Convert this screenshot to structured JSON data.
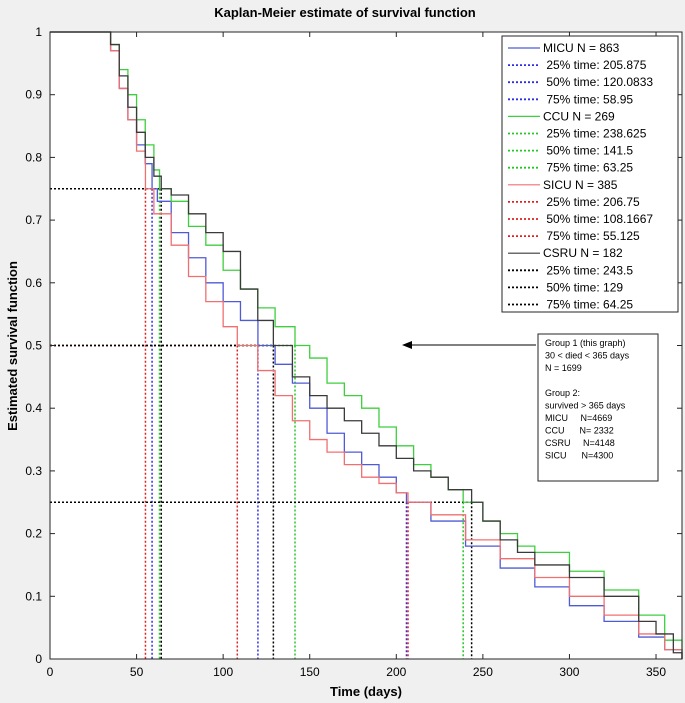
{
  "chart_data": {
    "type": "line",
    "title": "Kaplan-Meier estimate of survival function",
    "xlabel": "Time (days)",
    "ylabel": "Estimated survival function",
    "xlim": [
      0,
      365
    ],
    "ylim": [
      0,
      1
    ],
    "xticks": [
      "0",
      "50",
      "100",
      "150",
      "200",
      "250",
      "300",
      "350"
    ],
    "xtick_values": [
      0,
      50,
      100,
      150,
      200,
      250,
      300,
      350
    ],
    "yticks": [
      "0",
      "0.1",
      "0.2",
      "0.3",
      "0.4",
      "0.5",
      "0.6",
      "0.7",
      "0.8",
      "0.9",
      "1"
    ],
    "ytick_values": [
      0,
      0.1,
      0.2,
      0.3,
      0.4,
      0.5,
      0.6,
      0.7,
      0.8,
      0.9,
      1
    ],
    "series": [
      {
        "name": "MICU N = 863",
        "color": "#4f5bd5",
        "x": [
          0,
          30,
          35,
          40,
          45,
          50,
          55,
          58.95,
          62,
          70,
          80,
          90,
          100,
          110,
          120.0833,
          130,
          140,
          150,
          160,
          170,
          180,
          190,
          200,
          205.875,
          220,
          240,
          260,
          280,
          300,
          320,
          340,
          355,
          365
        ],
        "y": [
          1,
          1,
          0.97,
          0.91,
          0.86,
          0.82,
          0.79,
          0.75,
          0.73,
          0.68,
          0.64,
          0.6,
          0.57,
          0.54,
          0.5,
          0.47,
          0.44,
          0.4,
          0.36,
          0.33,
          0.31,
          0.29,
          0.265,
          0.25,
          0.22,
          0.18,
          0.145,
          0.115,
          0.085,
          0.06,
          0.035,
          0.015,
          0
        ]
      },
      {
        "name": "CCU N = 269",
        "color": "#3ecf3e",
        "x": [
          0,
          30,
          35,
          40,
          45,
          50,
          55,
          60,
          63.25,
          70,
          80,
          90,
          100,
          110,
          120,
          130,
          141.5,
          150,
          160,
          170,
          180,
          190,
          200,
          210,
          220,
          230,
          238.625,
          250,
          260,
          270,
          280,
          300,
          320,
          340,
          355,
          365
        ],
        "y": [
          1,
          1,
          0.98,
          0.94,
          0.9,
          0.86,
          0.82,
          0.78,
          0.75,
          0.73,
          0.69,
          0.66,
          0.62,
          0.59,
          0.56,
          0.53,
          0.5,
          0.48,
          0.44,
          0.42,
          0.4,
          0.37,
          0.34,
          0.31,
          0.29,
          0.27,
          0.25,
          0.22,
          0.2,
          0.18,
          0.17,
          0.14,
          0.11,
          0.07,
          0.03,
          0
        ]
      },
      {
        "name": "SICU N = 385",
        "color": "#f07070",
        "x": [
          0,
          30,
          35,
          40,
          45,
          50,
          55.125,
          60,
          70,
          80,
          90,
          100,
          108.1667,
          120,
          130,
          140,
          150,
          160,
          170,
          180,
          190,
          200,
          206.75,
          220,
          240,
          260,
          280,
          300,
          320,
          340,
          355,
          365
        ],
        "y": [
          1,
          1,
          0.97,
          0.91,
          0.86,
          0.81,
          0.75,
          0.71,
          0.66,
          0.61,
          0.57,
          0.53,
          0.5,
          0.46,
          0.42,
          0.38,
          0.35,
          0.33,
          0.31,
          0.29,
          0.28,
          0.265,
          0.25,
          0.23,
          0.19,
          0.16,
          0.13,
          0.1,
          0.07,
          0.04,
          0.015,
          0
        ]
      },
      {
        "name": "CSRU N = 182",
        "color": "#3a3a3a",
        "x": [
          0,
          30,
          35,
          40,
          45,
          50,
          55,
          60,
          64.25,
          70,
          80,
          90,
          100,
          110,
          120,
          129,
          140,
          150,
          160,
          170,
          180,
          190,
          200,
          210,
          220,
          230,
          243.5,
          250,
          260,
          270,
          280,
          300,
          320,
          340,
          350,
          360,
          365
        ],
        "y": [
          1,
          1,
          0.98,
          0.93,
          0.88,
          0.84,
          0.8,
          0.77,
          0.75,
          0.74,
          0.71,
          0.68,
          0.65,
          0.59,
          0.54,
          0.5,
          0.45,
          0.42,
          0.4,
          0.38,
          0.36,
          0.34,
          0.32,
          0.3,
          0.29,
          0.27,
          0.25,
          0.22,
          0.19,
          0.17,
          0.15,
          0.13,
          0.1,
          0.06,
          0.04,
          0.01,
          0
        ]
      }
    ],
    "quantile_markers": [
      {
        "series": "MICU",
        "color": "#2e2ee8",
        "values": [
          {
            "level": 0.25,
            "t": 205.875
          },
          {
            "level": 0.5,
            "t": 120.0833
          },
          {
            "level": 0.75,
            "t": 58.95
          }
        ]
      },
      {
        "series": "CCU",
        "color": "#22c822",
        "values": [
          {
            "level": 0.25,
            "t": 238.625
          },
          {
            "level": 0.5,
            "t": 141.5
          },
          {
            "level": 0.75,
            "t": 63.25
          }
        ]
      },
      {
        "series": "SICU",
        "color": "#e02020",
        "values": [
          {
            "level": 0.25,
            "t": 206.75
          },
          {
            "level": 0.5,
            "t": 108.1667
          },
          {
            "level": 0.75,
            "t": 55.125
          }
        ]
      },
      {
        "series": "CSRU",
        "color": "#000000",
        "values": [
          {
            "level": 0.25,
            "t": 243.5
          },
          {
            "level": 0.5,
            "t": 129
          },
          {
            "level": 0.75,
            "t": 64.25
          }
        ]
      }
    ],
    "legend": {
      "placement": "top-right",
      "entries": [
        {
          "label": "MICU N = 863",
          "color": "#4f5bd5",
          "style": "solid"
        },
        {
          "label": " 25% time: 205.875",
          "color": "#2e2ee8",
          "style": "dotted"
        },
        {
          "label": " 50% time: 120.0833",
          "color": "#2e2ee8",
          "style": "dotted"
        },
        {
          "label": " 75% time: 58.95",
          "color": "#2e2ee8",
          "style": "dotted"
        },
        {
          "label": "CCU N = 269",
          "color": "#3ecf3e",
          "style": "solid"
        },
        {
          "label": " 25% time: 238.625",
          "color": "#22c822",
          "style": "dotted"
        },
        {
          "label": " 50% time: 141.5",
          "color": "#22c822",
          "style": "dotted"
        },
        {
          "label": " 75% time: 63.25",
          "color": "#22c822",
          "style": "dotted"
        },
        {
          "label": "SICU N = 385",
          "color": "#f07070",
          "style": "solid"
        },
        {
          "label": " 25% time: 206.75",
          "color": "#e02020",
          "style": "dotted"
        },
        {
          "label": " 50% time: 108.1667",
          "color": "#e02020",
          "style": "dotted"
        },
        {
          "label": " 75% time: 55.125",
          "color": "#e02020",
          "style": "dotted"
        },
        {
          "label": "CSRU N = 182",
          "color": "#3a3a3a",
          "style": "solid"
        },
        {
          "label": " 25% time: 243.5",
          "color": "#000000",
          "style": "dotted"
        },
        {
          "label": " 50% time: 129",
          "color": "#000000",
          "style": "dotted"
        },
        {
          "label": " 75% time: 64.25",
          "color": "#000000",
          "style": "dotted"
        }
      ]
    },
    "annotation": {
      "lines": [
        "Group 1 (this graph)",
        "30 < died < 365 days",
        "N = 1699",
        "",
        "Group 2:",
        "survived > 365 days",
        "MICU     N=4669",
        "CCU      N= 2332",
        "CSRU     N=4148",
        "SICU      N=4300"
      ],
      "arrow": true
    }
  }
}
